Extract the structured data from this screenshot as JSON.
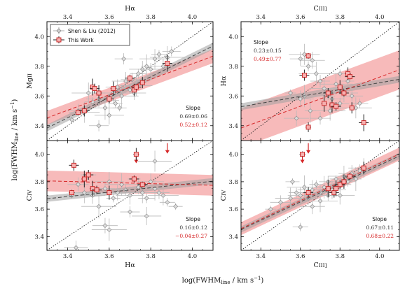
{
  "figure": {
    "xlabel": "log(FWHM_line / km s⁻¹)",
    "ylabel": "log(FWHM_line / km s⁻¹)",
    "colors": {
      "literature": "#9a9a9a",
      "this_work": "#d62728",
      "band_red": "#f4a3a3",
      "band_gray": "#a0a0a0"
    }
  },
  "legend": {
    "entries": [
      {
        "name": "Shen & Liu (2012)",
        "marker": "gray-diamond"
      },
      {
        "name": "This Work",
        "marker": "red-square"
      }
    ],
    "placement": "top-left of top-left panel"
  },
  "chart_data": [
    {
      "type": "scatter",
      "panel": "top-left",
      "xlabel": "Hα",
      "xlabel_position": "top",
      "ylabel": "MgII",
      "xlim": [
        3.3,
        4.1
      ],
      "ylim": [
        3.3,
        4.1
      ],
      "xticks": [
        "3.4",
        "3.6",
        "3.8",
        "4.0"
      ],
      "yticks": [
        "3.4",
        "3.6",
        "3.8",
        "4.0"
      ],
      "slope_label": "Slope",
      "slope_literature": "0.69±0.06",
      "slope_this_work": "0.52±0.12",
      "literature_fit": {
        "slope": 0.69,
        "at_3_7": 3.66
      },
      "this_work_fit": {
        "slope": 0.52,
        "at_3_7": 3.66
      },
      "literature_points": [
        [
          3.42,
          3.44
        ],
        [
          3.45,
          3.5
        ],
        [
          3.48,
          3.49
        ],
        [
          3.52,
          3.56
        ],
        [
          3.55,
          3.58
        ],
        [
          3.58,
          3.52
        ],
        [
          3.6,
          3.57
        ],
        [
          3.62,
          3.62
        ],
        [
          3.63,
          3.55
        ],
        [
          3.64,
          3.66
        ],
        [
          3.66,
          3.6
        ],
        [
          3.67,
          3.85
        ],
        [
          3.68,
          3.7
        ],
        [
          3.7,
          3.64
        ],
        [
          3.71,
          3.71
        ],
        [
          3.73,
          3.67
        ],
        [
          3.74,
          3.75
        ],
        [
          3.76,
          3.78
        ],
        [
          3.78,
          3.8
        ],
        [
          3.8,
          3.78
        ],
        [
          3.82,
          3.85
        ],
        [
          3.84,
          3.88
        ],
        [
          3.86,
          3.8
        ],
        [
          3.88,
          3.86
        ],
        [
          3.55,
          3.4
        ],
        [
          3.6,
          3.47
        ],
        [
          3.65,
          3.52
        ],
        [
          3.72,
          3.62
        ],
        [
          3.5,
          3.62
        ],
        [
          3.9,
          3.9
        ]
      ],
      "this_work_points": [
        [
          3.45,
          3.49
        ],
        [
          3.48,
          3.5
        ],
        [
          3.52,
          3.66
        ],
        [
          3.53,
          3.65
        ],
        [
          3.55,
          3.62
        ],
        [
          3.6,
          3.58
        ],
        [
          3.62,
          3.65
        ],
        [
          3.7,
          3.72
        ],
        [
          3.72,
          3.64
        ],
        [
          3.73,
          3.66
        ],
        [
          3.76,
          3.69
        ],
        [
          3.88,
          3.82
        ]
      ]
    },
    {
      "type": "scatter",
      "panel": "top-right",
      "xlabel": "CIII]",
      "xlabel_position": "top",
      "ylabel": "Hα",
      "xlim": [
        3.3,
        4.1
      ],
      "ylim": [
        3.3,
        4.1
      ],
      "xticks": [
        "3.4",
        "3.6",
        "3.8",
        "4.0"
      ],
      "yticks": [
        "3.4",
        "3.6",
        "3.8",
        "4.0"
      ],
      "slope_label": "Slope",
      "slope_literature": "0.23±0.15",
      "slope_this_work": "0.49±0.77",
      "literature_fit": {
        "slope": 0.23,
        "at_3_7": 3.62
      },
      "this_work_fit": {
        "slope": 0.49,
        "at_3_7": 3.58
      },
      "literature_points": [
        [
          3.55,
          3.62
        ],
        [
          3.6,
          3.85
        ],
        [
          3.62,
          3.88
        ],
        [
          3.64,
          3.8
        ],
        [
          3.66,
          3.84
        ],
        [
          3.68,
          3.75
        ],
        [
          3.7,
          3.7
        ],
        [
          3.72,
          3.65
        ],
        [
          3.74,
          3.6
        ],
        [
          3.76,
          3.58
        ],
        [
          3.78,
          3.68
        ],
        [
          3.8,
          3.55
        ],
        [
          3.82,
          3.62
        ],
        [
          3.84,
          3.7
        ],
        [
          3.86,
          3.6
        ],
        [
          3.88,
          3.52
        ],
        [
          3.9,
          3.55
        ],
        [
          3.6,
          3.58
        ],
        [
          3.65,
          3.5
        ],
        [
          3.7,
          3.45
        ],
        [
          3.75,
          3.5
        ],
        [
          3.8,
          3.75
        ],
        [
          3.58,
          3.45
        ],
        [
          3.62,
          3.6
        ]
      ],
      "this_work_points": [
        [
          3.64,
          3.87
        ],
        [
          3.62,
          3.74
        ],
        [
          3.72,
          3.55
        ],
        [
          3.74,
          3.62
        ],
        [
          3.76,
          3.54
        ],
        [
          3.78,
          3.53
        ],
        [
          3.8,
          3.66
        ],
        [
          3.82,
          3.62
        ],
        [
          3.84,
          3.75
        ],
        [
          3.85,
          3.73
        ],
        [
          3.86,
          3.52
        ],
        [
          3.92,
          3.42
        ],
        [
          3.64,
          3.39
        ]
      ]
    },
    {
      "type": "scatter",
      "panel": "bottom-left",
      "xlabel": "Hα",
      "xlabel_position": "bottom",
      "ylabel": "CIV",
      "xlim": [
        3.3,
        4.1
      ],
      "ylim": [
        3.3,
        4.1
      ],
      "xticks": [
        "3.4",
        "3.6",
        "3.8",
        "4.0"
      ],
      "yticks": [
        "3.4",
        "3.6",
        "3.8",
        "4.0"
      ],
      "slope_label": "Slope",
      "slope_literature": "0.16±0.12",
      "slope_this_work": "−0.04±0.27",
      "literature_fit": {
        "slope": 0.16,
        "at_3_7": 3.74
      },
      "this_work_fit": {
        "slope": -0.04,
        "at_3_7": 3.79
      },
      "literature_points": [
        [
          3.42,
          3.7
        ],
        [
          3.45,
          3.78
        ],
        [
          3.48,
          3.72
        ],
        [
          3.5,
          3.85
        ],
        [
          3.52,
          3.7
        ],
        [
          3.55,
          3.62
        ],
        [
          3.58,
          3.75
        ],
        [
          3.6,
          3.8
        ],
        [
          3.62,
          3.68
        ],
        [
          3.64,
          3.72
        ],
        [
          3.66,
          3.78
        ],
        [
          3.68,
          3.74
        ],
        [
          3.7,
          3.7
        ],
        [
          3.72,
          3.82
        ],
        [
          3.74,
          3.76
        ],
        [
          3.76,
          3.72
        ],
        [
          3.78,
          3.68
        ],
        [
          3.8,
          3.8
        ],
        [
          3.82,
          3.75
        ],
        [
          3.84,
          3.72
        ],
        [
          3.86,
          3.7
        ],
        [
          3.88,
          3.65
        ],
        [
          3.58,
          3.48
        ],
        [
          3.6,
          3.45
        ],
        [
          3.7,
          3.58
        ],
        [
          3.78,
          3.55
        ],
        [
          3.92,
          3.62
        ],
        [
          3.44,
          3.32
        ],
        [
          3.82,
          3.95
        ]
      ],
      "this_work_points": [
        [
          3.42,
          3.72
        ],
        [
          3.43,
          3.92
        ],
        [
          3.48,
          3.82
        ],
        [
          3.5,
          3.85
        ],
        [
          3.52,
          3.75
        ],
        [
          3.54,
          3.74
        ],
        [
          3.6,
          3.72
        ],
        [
          3.72,
          3.82
        ],
        [
          3.73,
          4.0
        ],
        [
          3.76,
          3.78
        ]
      ],
      "upper_limits": [
        [
          3.73,
          3.96
        ],
        [
          3.88,
          4.03
        ]
      ]
    },
    {
      "type": "scatter",
      "panel": "bottom-right",
      "xlabel": "CIII]",
      "xlabel_position": "bottom",
      "ylabel": "CIV",
      "xlim": [
        3.3,
        4.1
      ],
      "ylim": [
        3.3,
        4.1
      ],
      "xticks": [
        "3.4",
        "3.6",
        "3.8",
        "4.0"
      ],
      "yticks": [
        "3.4",
        "3.6",
        "3.8",
        "4.0"
      ],
      "slope_label": "Slope",
      "slope_literature": "0.67±0.11",
      "slope_this_work": "0.68±0.22",
      "literature_fit": {
        "slope": 0.67,
        "at_3_7": 3.72
      },
      "this_work_fit": {
        "slope": 0.68,
        "at_3_7": 3.73
      },
      "literature_points": [
        [
          3.45,
          3.6
        ],
        [
          3.5,
          3.65
        ],
        [
          3.55,
          3.68
        ],
        [
          3.58,
          3.72
        ],
        [
          3.6,
          3.7
        ],
        [
          3.62,
          3.76
        ],
        [
          3.64,
          3.68
        ],
        [
          3.66,
          3.74
        ],
        [
          3.68,
          3.78
        ],
        [
          3.7,
          3.72
        ],
        [
          3.72,
          3.76
        ],
        [
          3.74,
          3.8
        ],
        [
          3.76,
          3.74
        ],
        [
          3.78,
          3.82
        ],
        [
          3.8,
          3.78
        ],
        [
          3.82,
          3.84
        ],
        [
          3.84,
          3.8
        ],
        [
          3.86,
          3.86
        ],
        [
          3.88,
          3.82
        ],
        [
          3.9,
          3.88
        ],
        [
          3.92,
          3.9
        ],
        [
          3.6,
          3.47
        ],
        [
          3.66,
          3.62
        ],
        [
          3.7,
          3.66
        ],
        [
          3.74,
          3.7
        ],
        [
          3.8,
          3.7
        ],
        [
          3.56,
          3.8
        ]
      ],
      "this_work_points": [
        [
          3.61,
          4.0
        ],
        [
          3.64,
          3.72
        ],
        [
          3.74,
          3.75
        ],
        [
          3.77,
          3.72
        ],
        [
          3.78,
          3.75
        ],
        [
          3.8,
          3.78
        ],
        [
          3.82,
          3.8
        ],
        [
          3.85,
          3.84
        ],
        [
          3.92,
          3.9
        ]
      ],
      "upper_limits": [
        [
          3.61,
          3.96
        ],
        [
          3.64,
          4.03
        ]
      ]
    }
  ]
}
